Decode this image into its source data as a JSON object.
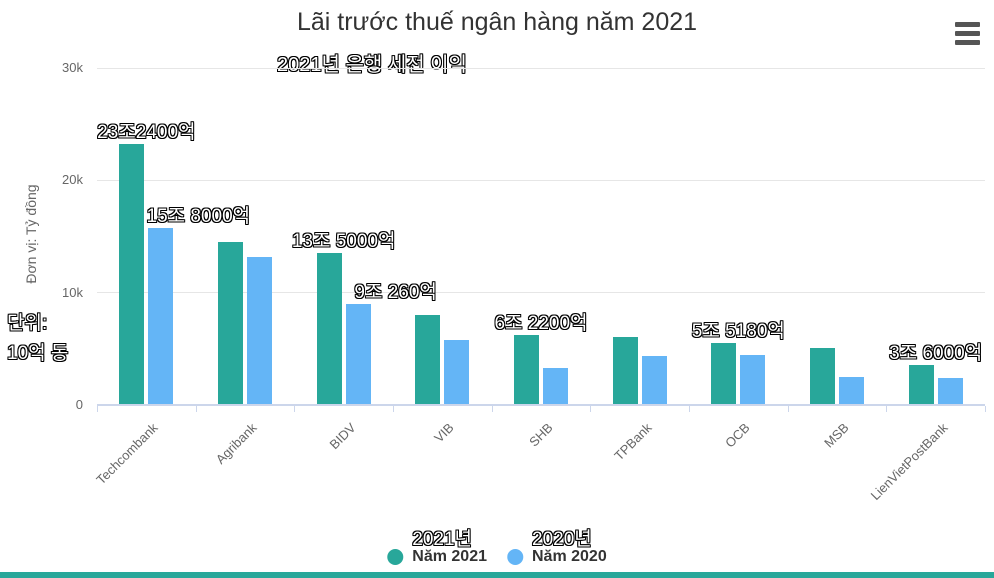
{
  "header": {
    "title": "Lãi trước thuế ngân hàng năm 2021",
    "subtitle_translation": "2021년 은행 세전 이익",
    "menu_icon": "hamburger-menu-icon"
  },
  "y_axis": {
    "title": "Đơn vị: Tỷ đồng",
    "unit_translation_line1": "단위:",
    "unit_translation_line2": "10억 동",
    "ticks": [
      {
        "label": "0",
        "value": 0
      },
      {
        "label": "10k",
        "value": 10000
      },
      {
        "label": "20k",
        "value": 20000
      },
      {
        "label": "30k",
        "value": 30000
      }
    ]
  },
  "legend": {
    "items": [
      {
        "label": "Năm 2021",
        "translation": "2021년",
        "color": "#28a79a"
      },
      {
        "label": "Năm 2020",
        "translation": "2020년",
        "color": "#64b5f6"
      }
    ]
  },
  "chart_data": {
    "type": "bar",
    "title": "Lãi trước thuế ngân hàng năm 2021",
    "subtitle_translation": "2021년 은행 세전 이익",
    "ylabel": "Đơn vị: Tỷ đồng",
    "ylim": [
      0,
      30000
    ],
    "ytick_labels": [
      "0",
      "10k",
      "20k",
      "30k"
    ],
    "grid": "horizontal",
    "legend_position": "bottom",
    "categories": [
      "Techcombank",
      "Agribank",
      "BIDV",
      "VIB",
      "SHB",
      "TPBank",
      "OCB",
      "MSB",
      "LienVietPostBank"
    ],
    "series": [
      {
        "name": "Năm 2021",
        "color": "#28a79a",
        "values": [
          23240,
          14500,
          13500,
          8000,
          6220,
          6040,
          5518,
          5100,
          3600
        ]
      },
      {
        "name": "Năm 2020",
        "color": "#64b5f6",
        "values": [
          15800,
          13200,
          9026,
          5800,
          3270,
          4390,
          4410,
          2520,
          2430
        ]
      }
    ],
    "data_labels": [
      {
        "text": "23조2400억",
        "category": "Techcombank",
        "series": "Năm 2021"
      },
      {
        "text": "15조 8000억",
        "category": "Techcombank",
        "series": "Năm 2020"
      },
      {
        "text": "13조 5000억",
        "category": "BIDV",
        "series": "Năm 2021"
      },
      {
        "text": "9조 260억",
        "category": "BIDV",
        "series": "Năm 2020"
      },
      {
        "text": "6조 2200억",
        "category": "SHB",
        "series": "Năm 2021"
      },
      {
        "text": "5조 5180억",
        "category": "OCB",
        "series": "Năm 2021"
      },
      {
        "text": "3조 6000억",
        "category": "LienVietPostBank",
        "series": "Năm 2021"
      }
    ]
  },
  "colors": {
    "series_2021": "#28a79a",
    "series_2020": "#64b5f6",
    "title_text": "#333333",
    "axis_text": "#666666",
    "gridline": "#e6e6e6",
    "axis_line": "#ccd6eb",
    "menu_icon": "#555555",
    "footer_strip": "#28a79a"
  }
}
